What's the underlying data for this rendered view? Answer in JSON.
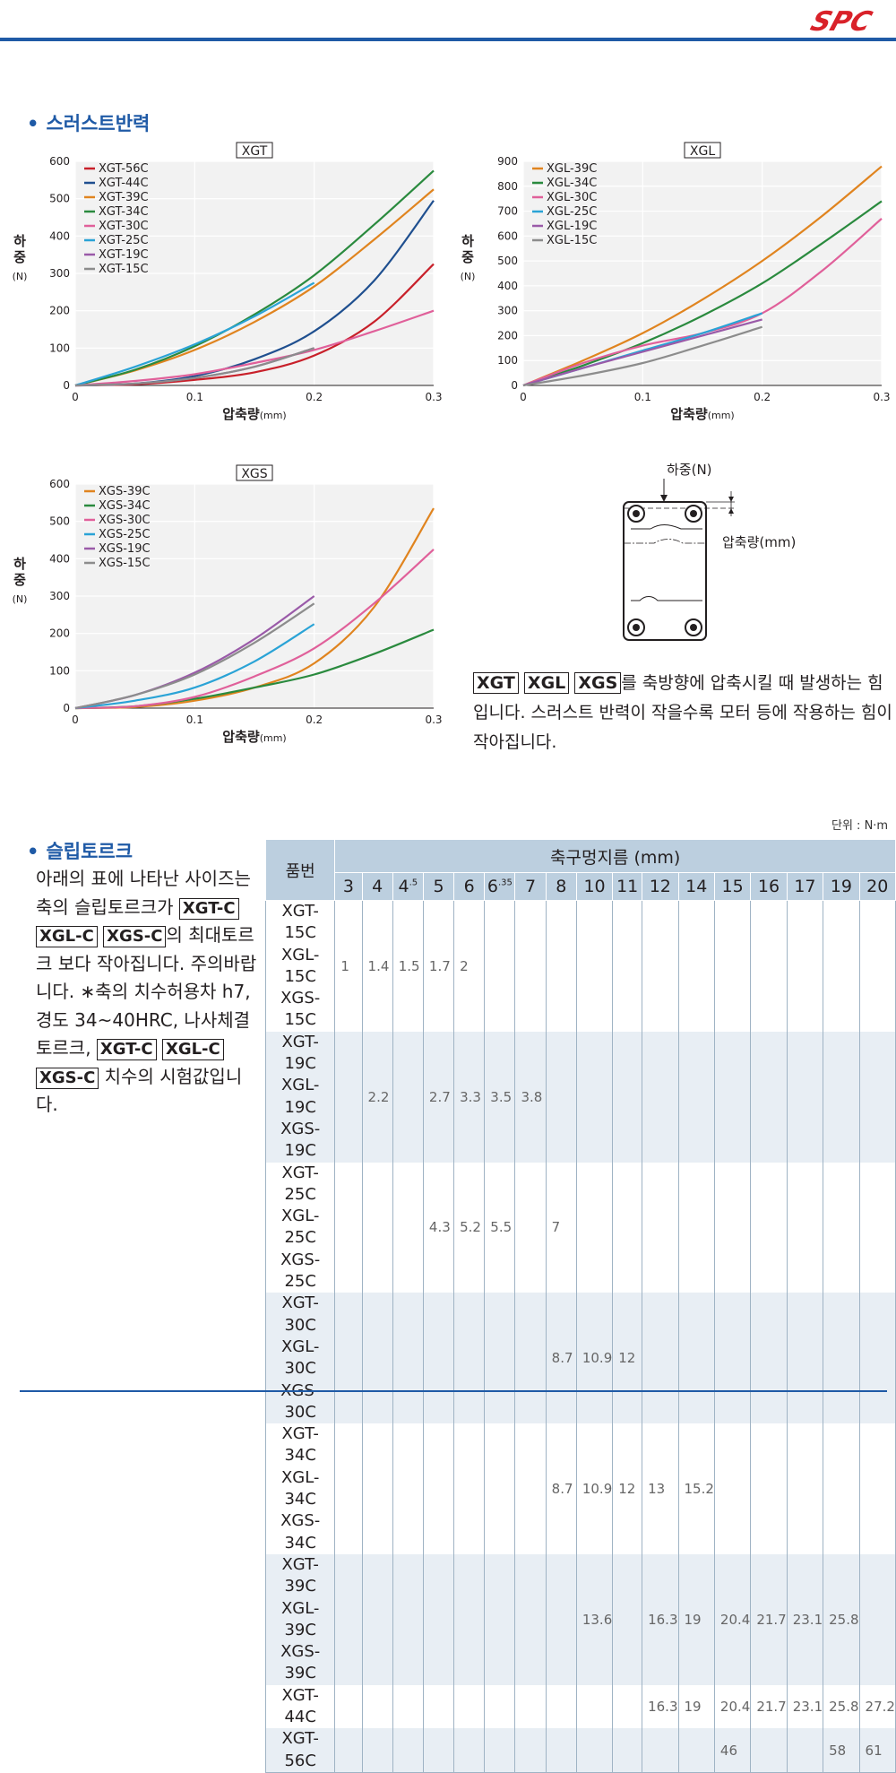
{
  "header": {
    "logo_text": "SPC"
  },
  "thrust": {
    "title": "스러스트반력",
    "desc_tags": [
      "XGT",
      "XGL",
      "XGS"
    ],
    "desc_text": "를 축방향에 압축시킬 때 발생하는 힘입니다. 스러스트 반력이 작을수록 모터 등에 작용하는 힘이 작아집니다.",
    "diagram": {
      "load_label": "하중(N)",
      "compress_label": "압축량(mm)"
    }
  },
  "chart_data": [
    {
      "type": "line",
      "title": "XGT",
      "xlabel": "압축량",
      "xunit": "(mm)",
      "ylabel": "하중",
      "yunit": "(N)",
      "xlim": [
        0,
        0.3
      ],
      "ylim": [
        0,
        600
      ],
      "xticks": [
        "0",
        "0.1",
        "0.2",
        "0.3"
      ],
      "yticks": [
        "0",
        "100",
        "200",
        "300",
        "400",
        "500",
        "600"
      ],
      "legend_position": "top-left",
      "series": [
        {
          "name": "XGT-56C",
          "color": "#c8202a",
          "x": [
            0,
            0.05,
            0.1,
            0.15,
            0.2,
            0.25,
            0.3
          ],
          "y": [
            0,
            3,
            15,
            35,
            80,
            170,
            325
          ]
        },
        {
          "name": "XGT-44C",
          "color": "#1f4f8f",
          "x": [
            0,
            0.05,
            0.1,
            0.15,
            0.2,
            0.25,
            0.3
          ],
          "y": [
            0,
            5,
            25,
            70,
            145,
            280,
            495
          ]
        },
        {
          "name": "XGT-39C",
          "color": "#e0841f",
          "x": [
            0,
            0.05,
            0.1,
            0.15,
            0.2,
            0.25,
            0.3
          ],
          "y": [
            0,
            40,
            95,
            170,
            265,
            390,
            525
          ]
        },
        {
          "name": "XGT-34C",
          "color": "#2a8a3e",
          "x": [
            0,
            0.05,
            0.1,
            0.15,
            0.2,
            0.25,
            0.3
          ],
          "y": [
            0,
            42,
            105,
            190,
            295,
            430,
            575
          ]
        },
        {
          "name": "XGT-30C",
          "color": "#e0609a",
          "x": [
            0,
            0.05,
            0.1,
            0.15,
            0.2,
            0.25,
            0.3
          ],
          "y": [
            0,
            12,
            30,
            60,
            95,
            145,
            200
          ]
        },
        {
          "name": "XGT-25C",
          "color": "#2aa3d6",
          "x": [
            0,
            0.05,
            0.1,
            0.15,
            0.2
          ],
          "y": [
            0,
            50,
            110,
            185,
            275
          ]
        },
        {
          "name": "XGT-19C",
          "color": "#9a5aa8",
          "x": [
            0,
            0.05,
            0.1,
            0.15,
            0.2
          ],
          "y": [
            0,
            5,
            20,
            50,
            100
          ]
        },
        {
          "name": "XGT-15C",
          "color": "#8c8c8c",
          "x": [
            0,
            0.05,
            0.1,
            0.15,
            0.2
          ],
          "y": [
            0,
            5,
            20,
            50,
            100
          ]
        }
      ]
    },
    {
      "type": "line",
      "title": "XGL",
      "xlabel": "압축량",
      "xunit": "(mm)",
      "ylabel": "하중",
      "yunit": "(N)",
      "xlim": [
        0,
        0.3
      ],
      "ylim": [
        0,
        900
      ],
      "xticks": [
        "0",
        "0.1",
        "0.2",
        "0.3"
      ],
      "yticks": [
        "0",
        "100",
        "200",
        "300",
        "400",
        "500",
        "600",
        "700",
        "800",
        "900"
      ],
      "legend_position": "top-left",
      "series": [
        {
          "name": "XGL-39C",
          "color": "#e0841f",
          "x": [
            0,
            0.05,
            0.1,
            0.15,
            0.2,
            0.25,
            0.3
          ],
          "y": [
            0,
            100,
            210,
            345,
            500,
            680,
            880
          ]
        },
        {
          "name": "XGL-34C",
          "color": "#2a8a3e",
          "x": [
            0,
            0.05,
            0.1,
            0.15,
            0.2,
            0.25,
            0.3
          ],
          "y": [
            0,
            80,
            170,
            280,
            410,
            570,
            740
          ]
        },
        {
          "name": "XGL-30C",
          "color": "#e0609a",
          "x": [
            0,
            0.05,
            0.1,
            0.15,
            0.2,
            0.25,
            0.3
          ],
          "y": [
            0,
            90,
            160,
            210,
            290,
            460,
            670
          ]
        },
        {
          "name": "XGL-25C",
          "color": "#2aa3d6",
          "x": [
            0,
            0.05,
            0.1,
            0.15,
            0.2
          ],
          "y": [
            0,
            70,
            140,
            210,
            290
          ]
        },
        {
          "name": "XGL-19C",
          "color": "#9a5aa8",
          "x": [
            0,
            0.05,
            0.1,
            0.15,
            0.2
          ],
          "y": [
            0,
            70,
            135,
            200,
            265
          ]
        },
        {
          "name": "XGL-15C",
          "color": "#8c8c8c",
          "x": [
            0,
            0.05,
            0.1,
            0.15,
            0.2
          ],
          "y": [
            0,
            40,
            90,
            160,
            235
          ]
        }
      ]
    },
    {
      "type": "line",
      "title": "XGS",
      "xlabel": "압축량",
      "xunit": "(mm)",
      "ylabel": "하중",
      "yunit": "(N)",
      "xlim": [
        0,
        0.3
      ],
      "ylim": [
        0,
        600
      ],
      "xticks": [
        "0",
        "0.1",
        "0.2",
        "0.3"
      ],
      "yticks": [
        "0",
        "100",
        "200",
        "300",
        "400",
        "500",
        "600"
      ],
      "legend_position": "top-left",
      "series": [
        {
          "name": "XGS-39C",
          "color": "#e0841f",
          "x": [
            0,
            0.05,
            0.1,
            0.15,
            0.2,
            0.25,
            0.3
          ],
          "y": [
            0,
            3,
            20,
            55,
            120,
            270,
            535
          ]
        },
        {
          "name": "XGS-34C",
          "color": "#2a8a3e",
          "x": [
            0,
            0.05,
            0.1,
            0.15,
            0.2,
            0.25,
            0.3
          ],
          "y": [
            0,
            5,
            25,
            55,
            90,
            145,
            210
          ]
        },
        {
          "name": "XGS-30C",
          "color": "#e0609a",
          "x": [
            0,
            0.05,
            0.1,
            0.15,
            0.2,
            0.25,
            0.3
          ],
          "y": [
            0,
            5,
            30,
            85,
            160,
            280,
            425
          ]
        },
        {
          "name": "XGS-25C",
          "color": "#2aa3d6",
          "x": [
            0,
            0.05,
            0.1,
            0.15,
            0.2
          ],
          "y": [
            0,
            20,
            55,
            125,
            225
          ]
        },
        {
          "name": "XGS-19C",
          "color": "#9a5aa8",
          "x": [
            0,
            0.05,
            0.1,
            0.15,
            0.2
          ],
          "y": [
            0,
            35,
            95,
            185,
            300
          ]
        },
        {
          "name": "XGS-15C",
          "color": "#8c8c8c",
          "x": [
            0,
            0.05,
            0.1,
            0.15,
            0.2
          ],
          "y": [
            0,
            35,
            90,
            175,
            280
          ]
        }
      ]
    }
  ],
  "slip": {
    "title": "슬립토르크",
    "unit": "단위 : N·m",
    "desc1": "아래의 표에 나타난 사이즈는 축의 슬립토르크가",
    "desc_tags1": [
      "XGT-C",
      "XGL-C",
      "XGS-C"
    ],
    "desc2": "의 최대토르크 보다 작아집니다. 주의바랍니다.",
    "desc3": "∗축의 치수허용차 h7, 경도 34~40HRC, 나사체결토르크,",
    "desc_tags2": [
      "XGT-C",
      "XGL-C",
      "XGS-C"
    ],
    "desc4": "치수의 시험값입니다.",
    "table": {
      "part_header": "품번",
      "diam_header": "축구멍지름 (mm)",
      "columns": [
        {
          "base": "3",
          "sup": ""
        },
        {
          "base": "4",
          "sup": ""
        },
        {
          "base": "4",
          "sup": ".5"
        },
        {
          "base": "5",
          "sup": ""
        },
        {
          "base": "6",
          "sup": ""
        },
        {
          "base": "6",
          "sup": ".35"
        },
        {
          "base": "7",
          "sup": ""
        },
        {
          "base": "8",
          "sup": ""
        },
        {
          "base": "10",
          "sup": ""
        },
        {
          "base": "11",
          "sup": ""
        },
        {
          "base": "12",
          "sup": ""
        },
        {
          "base": "14",
          "sup": ""
        },
        {
          "base": "15",
          "sup": ""
        },
        {
          "base": "16",
          "sup": ""
        },
        {
          "base": "17",
          "sup": ""
        },
        {
          "base": "19",
          "sup": ""
        },
        {
          "base": "20",
          "sup": ""
        }
      ],
      "groups": [
        {
          "parts": [
            "XGT-15C",
            "XGL-15C",
            "XGS-15C"
          ],
          "values": [
            "1",
            "1.4",
            "1.5",
            "1.7",
            "2",
            "",
            "",
            "",
            "",
            "",
            "",
            "",
            "",
            "",
            "",
            "",
            ""
          ]
        },
        {
          "parts": [
            "XGT-19C",
            "XGL-19C",
            "XGS-19C"
          ],
          "values": [
            "",
            "2.2",
            "",
            "2.7",
            "3.3",
            "3.5",
            "3.8",
            "",
            "",
            "",
            "",
            "",
            "",
            "",
            "",
            "",
            ""
          ]
        },
        {
          "parts": [
            "XGT-25C",
            "XGL-25C",
            "XGS-25C"
          ],
          "values": [
            "",
            "",
            "",
            "4.3",
            "5.2",
            "5.5",
            "",
            "7",
            "",
            "",
            "",
            "",
            "",
            "",
            "",
            "",
            ""
          ]
        },
        {
          "parts": [
            "XGT-30C",
            "XGL-30C",
            "XGS-30C"
          ],
          "values": [
            "",
            "",
            "",
            "",
            "",
            "",
            "",
            "8.7",
            "10.9",
            "12",
            "",
            "",
            "",
            "",
            "",
            "",
            ""
          ]
        },
        {
          "parts": [
            "XGT-34C",
            "XGL-34C",
            "XGS-34C"
          ],
          "values": [
            "",
            "",
            "",
            "",
            "",
            "",
            "",
            "8.7",
            "10.9",
            "12",
            "13",
            "15.2",
            "",
            "",
            "",
            "",
            ""
          ]
        },
        {
          "parts": [
            "XGT-39C",
            "XGL-39C",
            "XGS-39C"
          ],
          "values": [
            "",
            "",
            "",
            "",
            "",
            "",
            "",
            "",
            "13.6",
            "",
            "16.3",
            "19",
            "20.4",
            "21.7",
            "23.1",
            "25.8",
            ""
          ]
        },
        {
          "parts": [
            "XGT-44C"
          ],
          "values": [
            "",
            "",
            "",
            "",
            "",
            "",
            "",
            "",
            "",
            "",
            "16.3",
            "19",
            "20.4",
            "21.7",
            "23.1",
            "25.8",
            "27.2"
          ]
        },
        {
          "parts": [
            "XGT-56C"
          ],
          "values": [
            "",
            "",
            "",
            "",
            "",
            "",
            "",
            "",
            "",
            "",
            "",
            "",
            "46",
            "",
            "",
            "58",
            "61"
          ]
        }
      ]
    }
  }
}
